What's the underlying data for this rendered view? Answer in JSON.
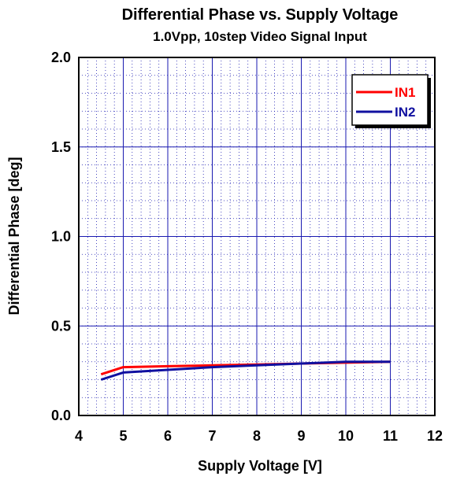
{
  "chart_data": {
    "type": "line",
    "title": "Differential Phase vs. Supply Voltage",
    "subtitle": "1.0Vpp, 10step Video Signal Input",
    "xlabel": "Supply Voltage [V]",
    "ylabel": "Differential Phase [deg]",
    "xlim": [
      4,
      12
    ],
    "ylim": [
      0,
      2
    ],
    "x_ticks": [
      "4",
      "5",
      "6",
      "7",
      "8",
      "9",
      "10",
      "11",
      "12"
    ],
    "y_ticks": [
      "0.0",
      "0.5",
      "1.0",
      "1.5",
      "2.0"
    ],
    "grid": true,
    "legend_position": "top-right",
    "series": [
      {
        "name": "IN1",
        "color": "#ff0000",
        "x": [
          4.5,
          5,
          6,
          7,
          8,
          9,
          10,
          11
        ],
        "y": [
          0.23,
          0.27,
          0.275,
          0.28,
          0.285,
          0.29,
          0.295,
          0.3
        ]
      },
      {
        "name": "IN2",
        "color": "#1010a0",
        "x": [
          4.5,
          5,
          6,
          7,
          8,
          9,
          10,
          11
        ],
        "y": [
          0.2,
          0.24,
          0.255,
          0.27,
          0.28,
          0.29,
          0.3,
          0.3
        ]
      }
    ]
  }
}
